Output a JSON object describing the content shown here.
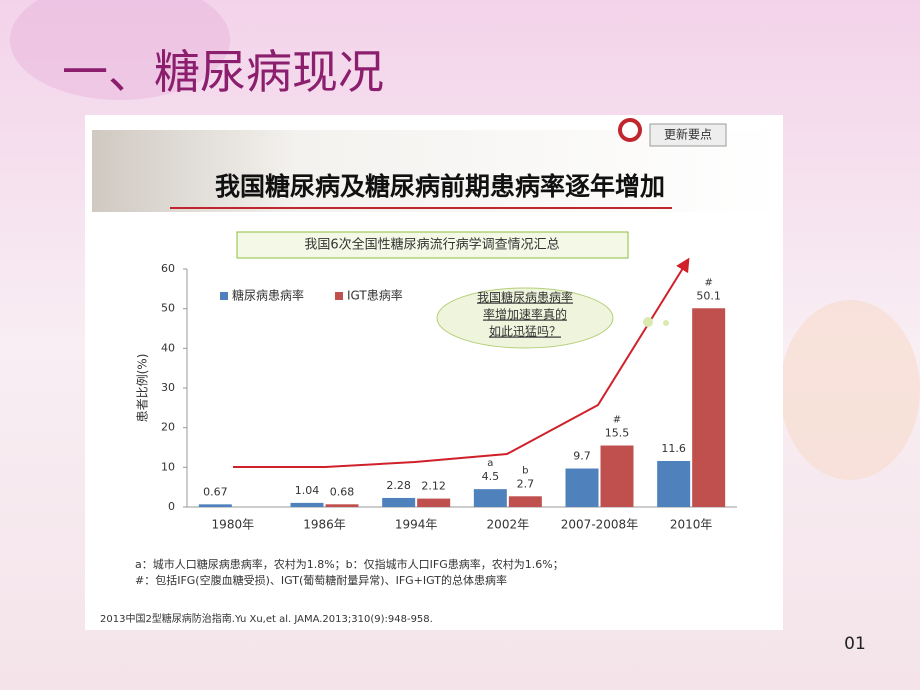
{
  "slide_title": "一、糖尿病现况",
  "badge": "更新要点",
  "chart_data": {
    "type": "bar",
    "title": "我国糖尿病及糖尿病前期患病率逐年增加",
    "subtitle": "我国6次全国性糖尿病流行病学调查情况汇总",
    "y_label": "患者比例(%)",
    "categories": [
      "1980年",
      "1986年",
      "1994年",
      "2002年",
      "2007-2008年",
      "2010年"
    ],
    "series": [
      {
        "name": "糖尿病患病率",
        "color": "#4f81bd",
        "values": [
          0.67,
          1.04,
          2.28,
          4.5,
          9.7,
          11.6
        ],
        "notes": [
          null,
          null,
          null,
          "a",
          null,
          null
        ]
      },
      {
        "name": "IGT患病率",
        "color": "#c0504d",
        "values": [
          null,
          0.68,
          2.12,
          2.7,
          15.5,
          50.1
        ],
        "notes": [
          null,
          null,
          null,
          "b",
          "#",
          "#"
        ]
      }
    ],
    "ylim": [
      0,
      60
    ],
    "yticks": [
      0,
      10,
      20,
      30,
      40,
      50,
      60
    ],
    "legend": "top-left",
    "callout": [
      "我国糖尿病患病率",
      "率增加速率真的",
      "如此迅猛吗？"
    ]
  },
  "footnotes": [
    "a：城市人口糖尿病患病率，农村为1.8%；b：仅指城市人口IFG患病率，农村为1.6%；",
    "#：包括IFG(空腹血糖受损)、IGT(葡萄糖耐量异常)、IFG+IGT的总体患病率"
  ],
  "reference": "2013中国2型糖尿病防治指南.Yu Xu,et al. JAMA.2013;310(9):948-958.",
  "page_number": "01"
}
